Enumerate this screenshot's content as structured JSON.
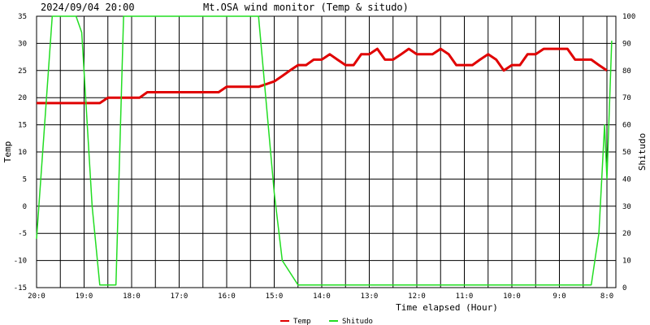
{
  "header": {
    "datetime": "2024/09/04 20:00",
    "title": "Mt.OSA wind monitor (Temp & situdo)"
  },
  "chart_data": {
    "type": "line",
    "title": "Mt.OSA wind monitor (Temp & situdo)",
    "xlabel": "Time elapsed (Hour)",
    "ylabel_left": "Temp",
    "ylabel_right": "Shitudo",
    "x_ticks": [
      "20:0",
      "19:0",
      "18:0",
      "17:0",
      "16:0",
      "15:0",
      "14:0",
      "13:0",
      "12:0",
      "11:0",
      "10:0",
      "9:0",
      "8:0"
    ],
    "xlim_hours_elapsed": [
      0,
      12.1
    ],
    "y_left": {
      "lim": [
        -15,
        35
      ],
      "ticks": [
        35,
        30,
        25,
        20,
        15,
        10,
        5,
        0,
        -5,
        -10,
        -15
      ]
    },
    "y_right": {
      "lim": [
        0,
        100
      ],
      "ticks": [
        100,
        90,
        80,
        70,
        60,
        50,
        40,
        30,
        20,
        10,
        0
      ]
    },
    "grid": true,
    "legend_placement": "bottom-center",
    "series": [
      {
        "name": "Temp",
        "axis": "left",
        "color": "#e00000",
        "x": [
          0,
          1.0,
          1.33,
          1.5,
          2.0,
          2.17,
          2.33,
          3.0,
          3.5,
          3.83,
          4.0,
          4.33,
          4.5,
          4.67,
          5.0,
          5.17,
          5.33,
          5.5,
          5.67,
          5.83,
          6.0,
          6.17,
          6.33,
          6.5,
          6.67,
          6.83,
          7.0,
          7.17,
          7.33,
          7.5,
          7.67,
          7.83,
          8.0,
          8.17,
          8.33,
          8.5,
          8.67,
          8.83,
          9.0,
          9.17,
          9.33,
          9.5,
          9.67,
          9.83,
          10.0,
          10.17,
          10.33,
          10.5,
          10.67,
          10.83,
          11.0,
          11.17,
          11.33,
          11.5,
          11.67,
          11.83,
          12.0
        ],
        "values": [
          19,
          19,
          19,
          20,
          20,
          20,
          21,
          21,
          21,
          21,
          22,
          22,
          22,
          22,
          23,
          24,
          25,
          26,
          26,
          27,
          27,
          28,
          27,
          26,
          26,
          28,
          28,
          29,
          27,
          27,
          28,
          29,
          28,
          28,
          28,
          29,
          28,
          26,
          26,
          26,
          27,
          28,
          27,
          25,
          26,
          26,
          28,
          28,
          29,
          29,
          29,
          29,
          27,
          27,
          27,
          26,
          25
        ]
      },
      {
        "name": "Shitudo",
        "axis": "right",
        "color": "#22dd22",
        "x": [
          0,
          0.17,
          0.33,
          0.5,
          0.83,
          0.95,
          1.17,
          1.33,
          1.67,
          1.83,
          2.0,
          2.17,
          4.33,
          4.5,
          4.67,
          5.0,
          5.17,
          5.5,
          5.83,
          6.0,
          12.0,
          11.67,
          11.83,
          11.95,
          12.1
        ],
        "values": [
          18,
          60,
          100,
          100,
          100,
          94,
          30,
          1,
          1,
          100,
          100,
          100,
          100,
          100,
          100,
          35,
          10,
          1,
          1,
          1,
          40,
          1,
          20,
          60,
          91
        ]
      }
    ]
  },
  "legend": {
    "temp_label": "Temp",
    "shitudo_label": "Shitudo"
  }
}
